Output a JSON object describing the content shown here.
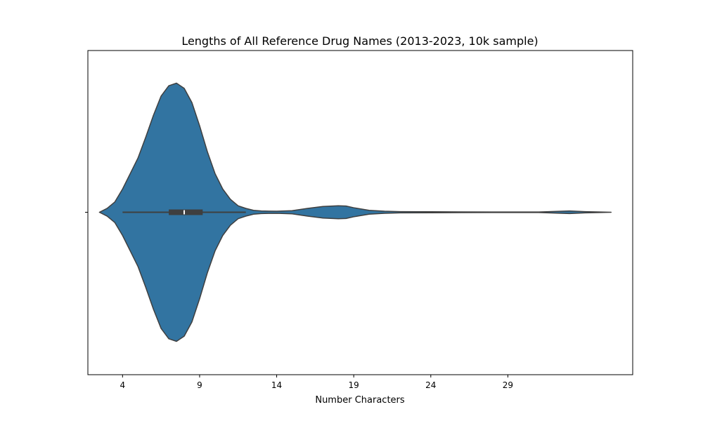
{
  "chart_data": {
    "type": "violin",
    "title": "Lengths of All Reference Drug Names (2013-2023, 10k sample)",
    "xlabel": "Number Characters",
    "ylabel": "",
    "xlim": [
      1.75,
      37.1
    ],
    "x_ticks": [
      4,
      9,
      14,
      19,
      24,
      29
    ],
    "x_tick_labels": [
      "4",
      "9",
      "14",
      "19",
      "24",
      "29"
    ],
    "y_ticks": [
      ""
    ],
    "grid": false,
    "orientation": "horizontal",
    "colors": {
      "violin_fill": "#3274a1",
      "violin_edge": "#3f3f3f",
      "box": "#3f3f3f",
      "median": "#ffffff"
    },
    "density": {
      "x": [
        2.5,
        3.0,
        3.5,
        4.0,
        4.5,
        5.0,
        5.5,
        6.0,
        6.5,
        7.0,
        7.5,
        8.0,
        8.5,
        9.0,
        9.5,
        10.0,
        10.5,
        11.0,
        11.5,
        12.0,
        12.5,
        13.0,
        14.0,
        15.0,
        16.0,
        17.0,
        18.0,
        18.5,
        19.0,
        20.0,
        21.0,
        22.0,
        24.0,
        26.0,
        28.0,
        30.0,
        31.0,
        32.0,
        33.0,
        34.0,
        35.0,
        35.7
      ],
      "relative_width": [
        0.0,
        0.03,
        0.08,
        0.18,
        0.3,
        0.42,
        0.58,
        0.75,
        0.9,
        0.98,
        1.0,
        0.96,
        0.85,
        0.67,
        0.47,
        0.3,
        0.18,
        0.1,
        0.05,
        0.03,
        0.015,
        0.01,
        0.008,
        0.012,
        0.03,
        0.045,
        0.05,
        0.048,
        0.035,
        0.015,
        0.008,
        0.005,
        0.004,
        0.003,
        0.002,
        0.002,
        0.002,
        0.006,
        0.01,
        0.005,
        0.002,
        0.0
      ]
    },
    "box": {
      "whisker_low": 4,
      "q1": 7,
      "median": 8,
      "q3": 9.2,
      "whisker_high": 12
    }
  }
}
